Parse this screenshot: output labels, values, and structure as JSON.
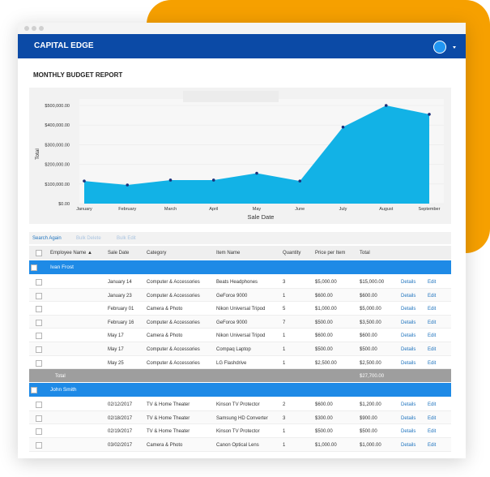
{
  "header": {
    "brand": "CAPITAL EDGE"
  },
  "report": {
    "title": "MONTHLY BUDGET REPORT"
  },
  "chart": {
    "type": "area",
    "x_label": "Sale Date",
    "y_label": "Total",
    "categories": [
      "January",
      "February",
      "March",
      "April",
      "May",
      "June",
      "July",
      "August",
      "September"
    ],
    "values": [
      115000,
      95000,
      120000,
      120000,
      155000,
      115000,
      390000,
      500000,
      455000
    ],
    "color": "#12b2e6",
    "marker_color": "#1b2f7a",
    "ylim": [
      0,
      500000
    ],
    "yticks": [
      {
        "value": 0,
        "label": "$0.00"
      },
      {
        "value": 100000,
        "label": "$100,000.00"
      },
      {
        "value": 200000,
        "label": "$200,000.00"
      },
      {
        "value": 300000,
        "label": "$300,000.00"
      },
      {
        "value": 400000,
        "label": "$400,000.00"
      },
      {
        "value": 500000,
        "label": "$500,000.00"
      }
    ],
    "grid": true
  },
  "toolbar": {
    "search": "Search Again",
    "delete": "Bulk Delete",
    "edit": "Bulk Edit"
  },
  "table": {
    "columns": [
      "Employee Name ▲",
      "Sale Date",
      "Category",
      "Item Name",
      "Quantity",
      "Price per Item",
      "Total"
    ],
    "actions": [
      "Details",
      "Edit"
    ],
    "groups": [
      {
        "name": "Ivan Frost",
        "rows": [
          [
            "January 14",
            "Computer & Accessories",
            "Beats Headphones",
            3,
            "$5,000.00",
            "$15,000.00"
          ],
          [
            "January 23",
            "Computer & Accessories",
            "GeForce 9000",
            1,
            "$600.00",
            "$600.00"
          ],
          [
            "February 01",
            "Camera & Photo",
            "Nikon Universal Tripod",
            5,
            "$1,000.00",
            "$5,000.00"
          ],
          [
            "February 16",
            "Computer & Accessories",
            "GeForce 9000",
            7,
            "$500.00",
            "$3,500.00"
          ],
          [
            "May 17",
            "Camera & Photo",
            "Nikon Universal Tripod",
            1,
            "$600.00",
            "$600.00"
          ],
          [
            "May 17",
            "Computer & Accessories",
            "Compaq Laptop",
            1,
            "$500.00",
            "$500.00"
          ],
          [
            "May 25",
            "Computer & Accessories",
            "LG Flashdrive",
            1,
            "$2,500.00",
            "$2,500.00"
          ]
        ],
        "total_label": "Total",
        "total": "$27,700.00"
      },
      {
        "name": "John Smith",
        "rows": [
          [
            "02/12/2017",
            "TV & Home Theater",
            "Kinson TV Protector",
            2,
            "$600.00",
            "$1,200.00"
          ],
          [
            "02/18/2017",
            "TV & Home Theater",
            "Samsung HD Converter",
            3,
            "$300.00",
            "$900.00"
          ],
          [
            "02/19/2017",
            "TV & Home Theater",
            "Kinson TV Protector",
            1,
            "$500.00",
            "$500.00"
          ],
          [
            "03/02/2017",
            "Camera & Photo",
            "Canon Optical Lens",
            1,
            "$1,000.00",
            "$1,000.00"
          ]
        ]
      }
    ]
  }
}
